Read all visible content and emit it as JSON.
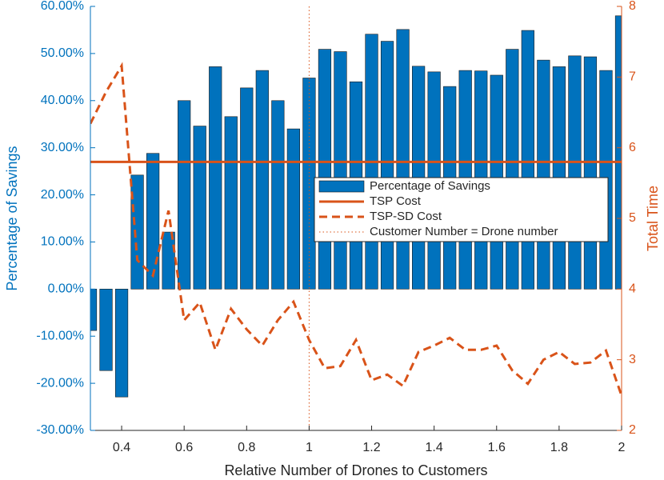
{
  "chart_data": {
    "type": "bar",
    "xlabel": "Relative Number of Drones to Customers",
    "ylabel": "Percentage of Savings",
    "y2label": "Total Time",
    "x": [
      0.3,
      0.35,
      0.4,
      0.45,
      0.5,
      0.55,
      0.6,
      0.65,
      0.7,
      0.75,
      0.8,
      0.85,
      0.9,
      0.95,
      1.0,
      1.05,
      1.1,
      1.15,
      1.2,
      1.25,
      1.3,
      1.35,
      1.4,
      1.45,
      1.5,
      1.55,
      1.6,
      1.65,
      1.7,
      1.75,
      1.8,
      1.85,
      1.9,
      1.95,
      2.0
    ],
    "series": [
      {
        "name": "Percentage of Savings",
        "type": "bar",
        "color": "#0072bd",
        "values": [
          -8.8,
          -17.3,
          -22.9,
          24.2,
          28.8,
          12.1,
          40.0,
          34.6,
          47.2,
          36.6,
          42.7,
          46.4,
          40.0,
          34.0,
          44.8,
          50.9,
          50.4,
          44.0,
          54.1,
          52.6,
          55.1,
          47.3,
          46.1,
          43.0,
          46.4,
          46.3,
          45.4,
          50.9,
          54.9,
          48.6,
          47.2,
          49.5,
          49.3,
          46.4,
          58.0
        ]
      },
      {
        "name": "TSP Cost",
        "type": "hline",
        "axis": "y2",
        "color": "#d95319",
        "style": "solid",
        "value": 5.8
      },
      {
        "name": "TSP-SD Cost",
        "type": "line",
        "axis": "y2",
        "color": "#d95319",
        "style": "dashed",
        "values": [
          6.34,
          6.79,
          7.16,
          4.41,
          4.19,
          5.11,
          3.56,
          3.81,
          3.14,
          3.72,
          3.43,
          3.2,
          3.56,
          3.82,
          3.28,
          2.88,
          2.91,
          3.28,
          2.71,
          2.79,
          2.63,
          3.11,
          3.2,
          3.31,
          3.14,
          3.14,
          3.2,
          2.85,
          2.66,
          3.0,
          3.11,
          2.94,
          2.96,
          3.13,
          2.49
        ]
      },
      {
        "name": "Customer Number = Drone number",
        "type": "vline",
        "color": "#d95319",
        "style": "dotted",
        "x": 1
      }
    ],
    "xlim": [
      0.3,
      2
    ],
    "xticks": [
      0.4,
      0.6,
      0.8,
      1,
      1.2,
      1.4,
      1.6,
      1.8,
      2
    ],
    "ylim": [
      -30,
      60
    ],
    "yticks": [
      {
        "value": -30,
        "label": "-30.00%"
      },
      {
        "value": -20,
        "label": "-20.00%"
      },
      {
        "value": -10,
        "label": "-10.00%"
      },
      {
        "value": 0,
        "label": "0.00%"
      },
      {
        "value": 10,
        "label": "10.00%"
      },
      {
        "value": 20,
        "label": "20.00%"
      },
      {
        "value": 30,
        "label": "30.00%"
      },
      {
        "value": 40,
        "label": "40.00%"
      },
      {
        "value": 50,
        "label": "50.00%"
      },
      {
        "value": 60,
        "label": "60.00%"
      }
    ],
    "y2lim": [
      2,
      8
    ],
    "y2ticks": [
      2,
      3,
      4,
      5,
      6,
      7,
      8
    ],
    "y_color": "#0072bd",
    "y2_color": "#d95319",
    "legend": "east"
  }
}
